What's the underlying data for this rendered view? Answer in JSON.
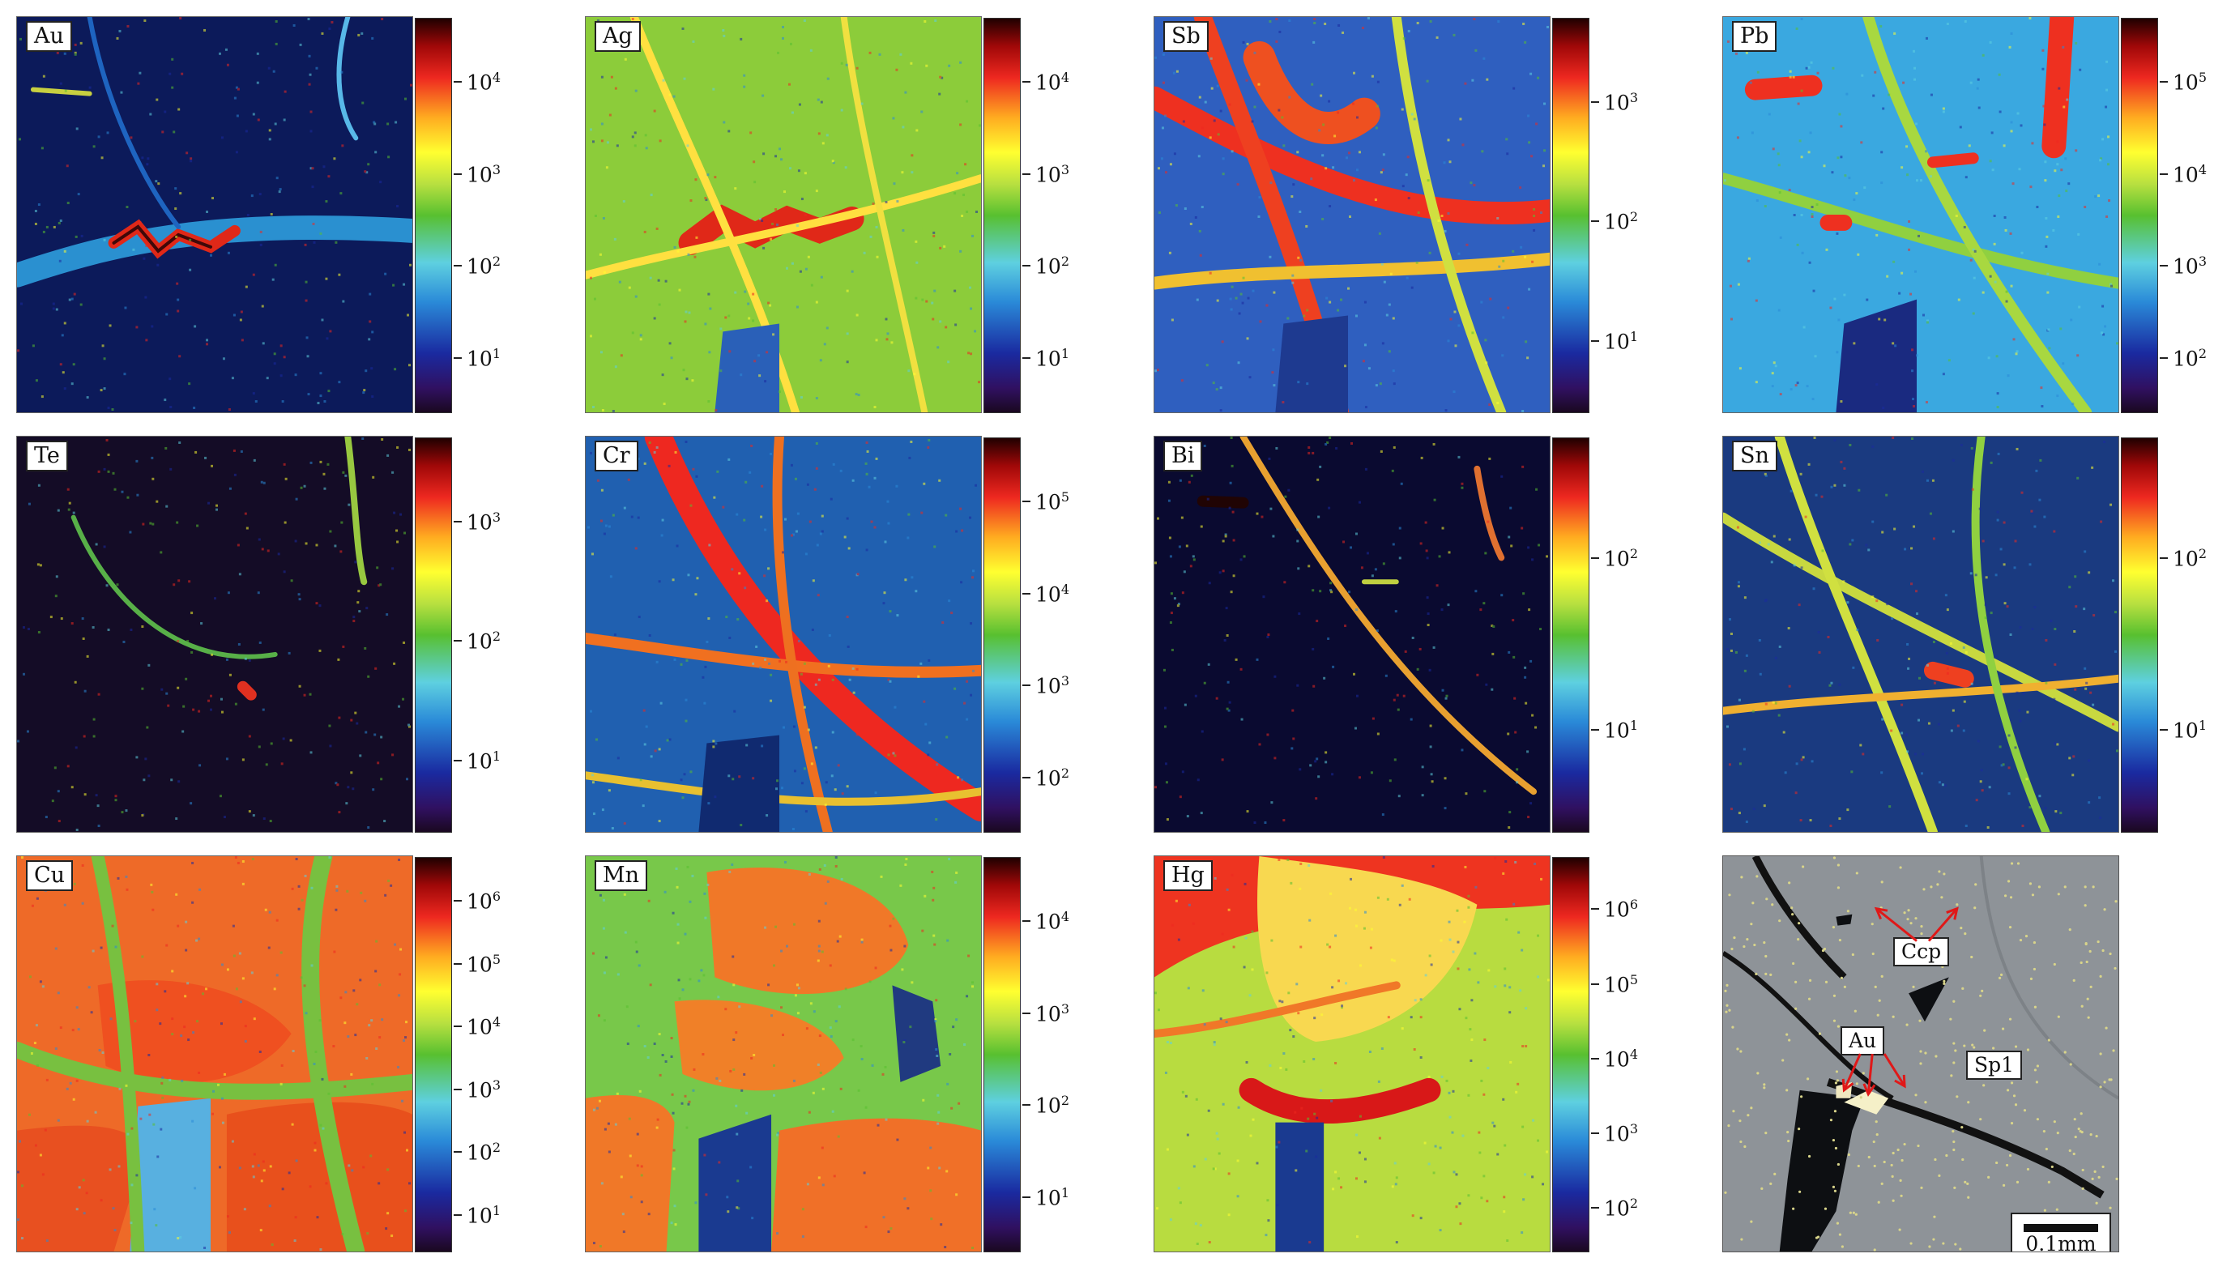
{
  "figure": {
    "panels": [
      {
        "element": "Au",
        "colorbar_exponents": [
          1,
          2,
          3,
          4
        ],
        "pattern": "au",
        "base": "#0c1a5a"
      },
      {
        "element": "Ag",
        "colorbar_exponents": [
          1,
          2,
          3,
          4
        ],
        "pattern": "ag",
        "base": "#8ccc3a"
      },
      {
        "element": "Sb",
        "colorbar_exponents": [
          1,
          2,
          3
        ],
        "pattern": "sb",
        "base": "#2f5fbf"
      },
      {
        "element": "Pb",
        "colorbar_exponents": [
          2,
          3,
          4,
          5
        ],
        "pattern": "pb",
        "base": "#3aa8e0"
      },
      {
        "element": "Te",
        "colorbar_exponents": [
          1,
          2,
          3
        ],
        "pattern": "te",
        "base": "#140c26"
      },
      {
        "element": "Cr",
        "colorbar_exponents": [
          2,
          3,
          4,
          5
        ],
        "pattern": "cr",
        "base": "#2060b0"
      },
      {
        "element": "Bi",
        "colorbar_exponents": [
          1,
          2
        ],
        "pattern": "bi",
        "base": "#0a0a30"
      },
      {
        "element": "Sn",
        "colorbar_exponents": [
          1,
          2
        ],
        "pattern": "sn",
        "base": "#1a3a80"
      },
      {
        "element": "Cu",
        "colorbar_exponents": [
          1,
          2,
          3,
          4,
          5,
          6
        ],
        "pattern": "cu",
        "base": "#ee6a28"
      },
      {
        "element": "Mn",
        "colorbar_exponents": [
          1,
          2,
          3,
          4
        ],
        "pattern": "mn",
        "base": "#78c84a"
      },
      {
        "element": "Hg",
        "colorbar_exponents": [
          2,
          3,
          4,
          5,
          6
        ],
        "pattern": "hg",
        "base": "#b8dc40"
      }
    ],
    "tick_base": "10",
    "micrograph": {
      "labels": {
        "ccp": "Ccp",
        "au": "Au",
        "sp1": "Sp1"
      },
      "scale_label": "0.1mm",
      "arrow_color": "#e01818"
    }
  }
}
